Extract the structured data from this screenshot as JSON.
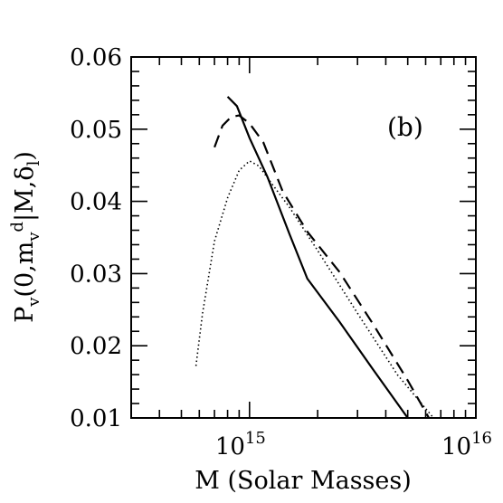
{
  "chart_data": {
    "type": "line",
    "title": "",
    "xlabel": "M (Solar Masses)",
    "ylabel": "P_v(0,m_v^d|M,δ_l)",
    "xscale": "log",
    "xlim": [
      300000000000000.0,
      1e+16
    ],
    "ylim": [
      0.01,
      0.06
    ],
    "annotation": "(b)",
    "y_ticks": [
      0.01,
      0.02,
      0.03,
      0.04,
      0.05,
      0.06
    ],
    "y_tick_labels": [
      "0.01",
      "0.02",
      "0.03",
      "0.04",
      "0.05",
      "0.06"
    ],
    "x_tick_labels": [
      {
        "value": 1000000000000000.0,
        "mantissa": "10",
        "exponent": "15"
      },
      {
        "value": 1e+16,
        "mantissa": "10",
        "exponent": "16"
      }
    ],
    "grid": false,
    "legend": "none",
    "series": [
      {
        "style": "solid",
        "x": [
          800000000000000.0,
          880000000000000.0,
          1000000000000000.0,
          1200000000000000.0,
          1500000000000000.0,
          1800000000000000.0,
          2500000000000000.0,
          3500000000000000.0,
          5000000000000000.0
        ],
        "y": [
          0.0545,
          0.0532,
          0.0488,
          0.0434,
          0.0355,
          0.0293,
          0.0233,
          0.0168,
          0.01
        ]
      },
      {
        "style": "dashed",
        "x": [
          700000000000000.0,
          760000000000000.0,
          830000000000000.0,
          900000000000000.0,
          1000000000000000.0,
          1150000000000000.0,
          1400000000000000.0,
          1800000000000000.0,
          2500000000000000.0,
          3500000000000000.0,
          5000000000000000.0,
          6200000000000000.0
        ],
        "y": [
          0.0475,
          0.0505,
          0.0517,
          0.0519,
          0.0508,
          0.0482,
          0.0414,
          0.0358,
          0.0302,
          0.0231,
          0.0152,
          0.01
        ]
      },
      {
        "style": "dotted",
        "x": [
          580000000000000.0,
          620000000000000.0,
          700000000000000.0,
          800000000000000.0,
          900000000000000.0,
          1000000000000000.0,
          1100000000000000.0,
          1250000000000000.0,
          1500000000000000.0,
          2000000000000000.0,
          3000000000000000.0,
          4500000000000000.0,
          6500000000000000.0
        ],
        "y": [
          0.0172,
          0.0245,
          0.0345,
          0.0405,
          0.0443,
          0.0456,
          0.0449,
          0.0425,
          0.0392,
          0.0332,
          0.0245,
          0.016,
          0.01
        ]
      }
    ]
  }
}
